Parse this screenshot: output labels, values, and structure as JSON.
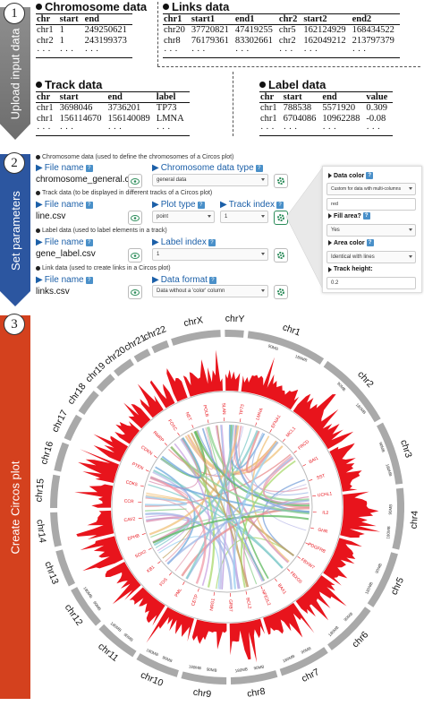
{
  "steps": [
    {
      "num": "1",
      "label": "Upload input data",
      "color": "#888888"
    },
    {
      "num": "2",
      "label": "Set parameters",
      "color": "#2c56a0"
    },
    {
      "num": "3",
      "label": "Create Circos plot",
      "color": "#d4411e"
    }
  ],
  "tables": {
    "chromosome": {
      "title": "Chromosome data",
      "headers": [
        "chr",
        "start",
        "end"
      ],
      "rows": [
        [
          "chr1",
          "1",
          "249250621"
        ],
        [
          "chr2",
          "1",
          "243199373"
        ],
        [
          "· · ·",
          "· · ·",
          "· · ·"
        ]
      ]
    },
    "links": {
      "title": "Links data",
      "headers": [
        "chr1",
        "start1",
        "end1",
        "chr2",
        "start2",
        "end2"
      ],
      "rows": [
        [
          "chr20",
          "37720821",
          "47419255",
          "chr5",
          "162124929",
          "168434522"
        ],
        [
          "chr8",
          "76179361",
          "83302661",
          "chr2",
          "162049212",
          "213797379"
        ],
        [
          "· · ·",
          "· · ·",
          "· · ·",
          "· · ·",
          "· · ·",
          "· · ·"
        ]
      ]
    },
    "track": {
      "title": "Track data",
      "headers": [
        "chr",
        "start",
        "end",
        "label"
      ],
      "rows": [
        [
          "chr1",
          "3698046",
          "3736201",
          "TP73"
        ],
        [
          "chr1",
          "156114670",
          "156140089",
          "LMNA"
        ],
        [
          "· · ·",
          "· · ·",
          "· · ·",
          "· · ·"
        ]
      ]
    },
    "label": {
      "title": "Label data",
      "headers": [
        "chr",
        "start",
        "end",
        "value"
      ],
      "rows": [
        [
          "chr1",
          "788538",
          "5571920",
          "0.309"
        ],
        [
          "chr1",
          "6704086",
          "10962288",
          "-0.08"
        ],
        [
          "· · ·",
          "· · ·",
          "· · ·",
          "· · ·"
        ]
      ]
    }
  },
  "params": {
    "chromosome": {
      "desc": "Chromosome data (used to define the chromosomes of a Circos plot)",
      "file_label": "File name",
      "file_value": "chromosome_general.csv",
      "type_label": "Chromosome data type",
      "type_value": "general data"
    },
    "track": {
      "desc": "Track data (to be displayed in different tracks of a Circos plot)",
      "file_label": "File name",
      "file_value": "line.csv",
      "plot_label": "Plot type",
      "plot_value": "point",
      "index_label": "Track index",
      "index_value": "1"
    },
    "label": {
      "desc": "Label data (used to label elements in a track)",
      "file_label": "File name",
      "file_value": "gene_label.csv",
      "index_label": "Label index",
      "index_value": "1"
    },
    "link": {
      "desc": "Link data (used to create links in a Circos plot)",
      "file_label": "File name",
      "file_value": "links.csv",
      "format_label": "Data format",
      "format_value": "Data without a 'color' column"
    }
  },
  "panel": {
    "data_color_label": "Data color",
    "data_color_value": "Custom for data with multi-columns",
    "data_color_input": "red",
    "fill_area_label": "Fill area?",
    "fill_area_value": "Yes",
    "area_color_label": "Area color",
    "area_color_value": "Identical with lines",
    "track_height_label": "Track height:",
    "track_height_value": "0.2"
  },
  "circos": {
    "chromosomes": [
      "chr1",
      "chr2",
      "chr3",
      "chr4",
      "chr5",
      "chr6",
      "chr7",
      "chr8",
      "chr9",
      "chr10",
      "chr11",
      "chr12",
      "chr13",
      "chr14",
      "chr15",
      "chr16",
      "chr17",
      "chr18",
      "chr19",
      "chr20",
      "chr21",
      "chr22",
      "chrX",
      "chrY"
    ],
    "scale_labels": [
      "90MB",
      "180MB"
    ],
    "genes": [
      "TP73",
      "LMNA",
      "EFNA1",
      "MCL1",
      "FRCD",
      "BAI1",
      "SST",
      "UCHL1",
      "IL2",
      "GHR",
      "PDGFRB",
      "FBXW7",
      "FBXO5",
      "BAX1",
      "NFE2L2",
      "BCL2",
      "GRB7",
      "NRG1",
      "CETP",
      "PML",
      "FOS",
      "KB1",
      "SOX2",
      "EPHB",
      "CAV2",
      "CCR",
      "CDK5",
      "PTEN",
      "CDKN",
      "RMRP",
      "FOXC",
      "NET",
      "POLB",
      "SLAN"
    ],
    "colors": {
      "track": "#e8141c",
      "ring": "#a9a9a9"
    }
  }
}
